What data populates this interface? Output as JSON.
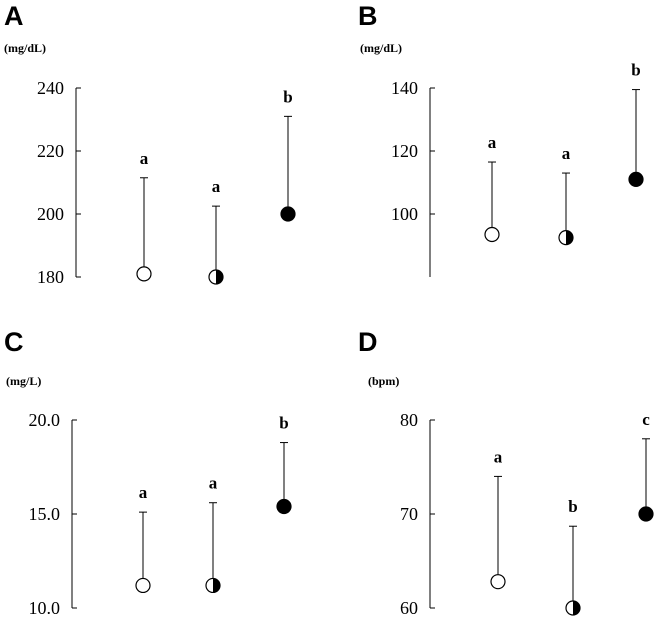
{
  "chart_data": [
    {
      "type": "scatter",
      "panel": "A",
      "unit": "(mg/dL)",
      "ylim": [
        180,
        240
      ],
      "yticks": [
        "180",
        "200",
        "220",
        "240"
      ],
      "groups": [
        {
          "marker": "open",
          "mean": 181,
          "upper": 211.5,
          "sig": "a"
        },
        {
          "marker": "half",
          "mean": 180,
          "upper": 202.5,
          "sig": "a"
        },
        {
          "marker": "filled",
          "mean": 200,
          "upper": 231,
          "sig": "b"
        }
      ]
    },
    {
      "type": "scatter",
      "panel": "B",
      "unit": "(mg/dL)",
      "ylim": [
        80,
        140
      ],
      "yticks": [
        "100",
        "120",
        "140"
      ],
      "groups": [
        {
          "marker": "open",
          "mean": 93.5,
          "upper": 116.5,
          "sig": "a"
        },
        {
          "marker": "half",
          "mean": 92.5,
          "upper": 113,
          "sig": "a"
        },
        {
          "marker": "filled",
          "mean": 111,
          "upper": 139.5,
          "sig": "b"
        }
      ]
    },
    {
      "type": "scatter",
      "panel": "C",
      "unit": "(mg/L)",
      "ylim": [
        10,
        20
      ],
      "yticks": [
        "10.0",
        "15.0",
        "20.0"
      ],
      "groups": [
        {
          "marker": "open",
          "mean": 11.2,
          "upper": 15.1,
          "sig": "a"
        },
        {
          "marker": "half",
          "mean": 11.2,
          "upper": 15.6,
          "sig": "a"
        },
        {
          "marker": "filled",
          "mean": 15.4,
          "upper": 18.8,
          "sig": "b"
        }
      ]
    },
    {
      "type": "scatter",
      "panel": "D",
      "unit": "(bpm)",
      "ylim": [
        60,
        80
      ],
      "yticks": [
        "60",
        "70",
        "80"
      ],
      "groups": [
        {
          "marker": "open",
          "mean": 62.8,
          "upper": 74,
          "sig": "a"
        },
        {
          "marker": "half",
          "mean": 60,
          "upper": 68.7,
          "sig": "b"
        },
        {
          "marker": "filled",
          "mean": 70,
          "upper": 78,
          "sig": "c"
        }
      ]
    }
  ]
}
